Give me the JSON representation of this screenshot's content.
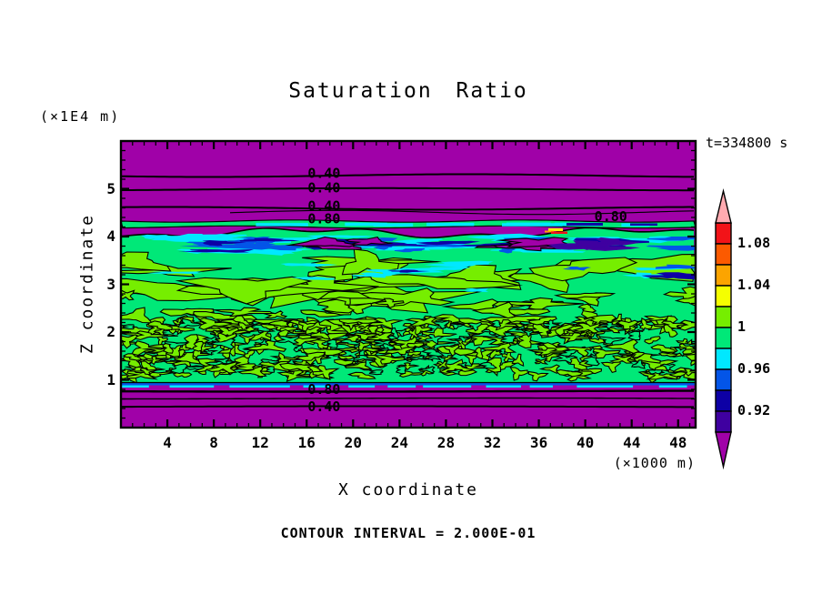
{
  "title": "Saturation Ratio",
  "annotations": {
    "timestamp": "t=334800 s",
    "y_unit": "(×1E4 m)",
    "x_unit": "(×1000 m)",
    "footer": "CONTOUR INTERVAL = 2.000E-01"
  },
  "axes": {
    "x": {
      "title": "X coordinate",
      "major_ticks": [
        4,
        8,
        12,
        16,
        20,
        24,
        28,
        32,
        36,
        40,
        44,
        48
      ],
      "minor_tick_step": 1,
      "range": [
        0,
        49.5
      ]
    },
    "y": {
      "title": "Z coordinate",
      "major_ticks": [
        1,
        2,
        3,
        4,
        5
      ],
      "minor_tick_step": 0.2,
      "range": [
        0,
        6
      ]
    }
  },
  "colorbar": {
    "labels": [
      "1.08",
      "1.04",
      "1",
      "0.96",
      "0.92"
    ],
    "levels": [
      0.9,
      0.92,
      0.94,
      0.96,
      0.98,
      1.0,
      1.02,
      1.04,
      1.06,
      1.08,
      1.1
    ],
    "segment_colors_top_to_bottom": [
      "#F21318",
      "#FC5A00",
      "#FCA400",
      "#F5FF00",
      "#76EE00",
      "#00E878",
      "#00E8FF",
      "#0355E8",
      "#0D00A5",
      "#3F00A0"
    ],
    "over_color": "#FFAAB0",
    "under_color": "#A001A8"
  },
  "chart_data": {
    "type": "heatmap",
    "subtype": "filled contour plot",
    "title": "Saturation Ratio",
    "xlabel": "X coordinate",
    "x_unit": "×1000 m",
    "ylabel": "Z coordinate",
    "y_unit": "×1E4 m",
    "x_range": [
      0,
      49.5
    ],
    "y_range": [
      0,
      6
    ],
    "time_label": "t=334800 s",
    "contour_interval": "2.000E-01",
    "fill_level_step": 0.02,
    "contour_labels": [
      {
        "text": "0.40",
        "x": 17.5,
        "z": 5.3
      },
      {
        "text": "0.40",
        "x": 17.5,
        "z": 5.0
      },
      {
        "text": "0.40",
        "x": 17.5,
        "z": 4.62
      },
      {
        "text": "0.80",
        "x": 17.5,
        "z": 4.35
      },
      {
        "text": "0.80",
        "x": 42.2,
        "z": 4.4
      },
      {
        "text": "0.80",
        "x": 17.5,
        "z": 0.78
      },
      {
        "text": "0.40",
        "x": 17.5,
        "z": 0.42
      }
    ],
    "regions": [
      {
        "name": "upper dry layer",
        "z_from": 4.45,
        "z_to": 6.0,
        "value": "S < 0.90 (below scale, purple)",
        "line_contours_z": [
          5.3,
          5.0,
          4.62,
          4.5
        ]
      },
      {
        "name": "moist strip",
        "z_from": 4.27,
        "z_to": 4.4,
        "value": "S ≈ 0.96–1.00 thin green band with cyan patches"
      },
      {
        "name": "entrainment band",
        "z_from": 3.7,
        "z_to": 4.05,
        "value": "S ≈ 0.90–0.98 cyan/blue/navy streaks with purple blobs"
      },
      {
        "name": "mixed layer",
        "z_from": 0.95,
        "z_to": 4.05,
        "value": "S ≈ 0.98–1.02 speckled green/chartreuse"
      },
      {
        "name": "lower dry layer",
        "z_from": 0.0,
        "z_to": 0.9,
        "value": "S < 0.90 (below scale, purple)",
        "line_contours_z": [
          0.78,
          0.6,
          0.42
        ]
      }
    ]
  }
}
